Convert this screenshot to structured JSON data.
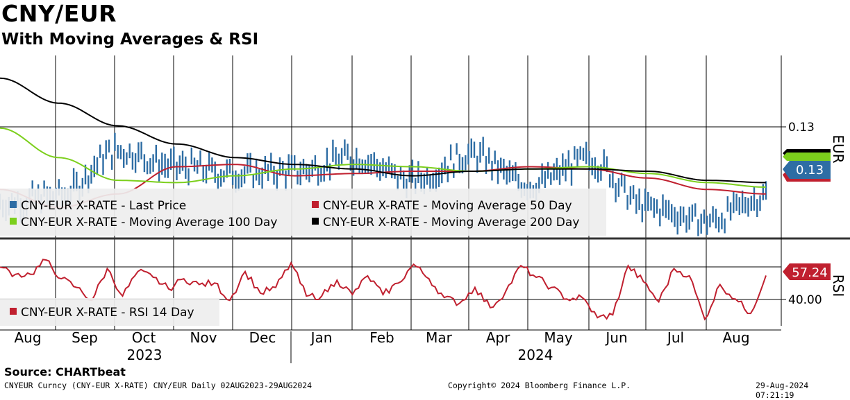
{
  "title": "CNY/EUR",
  "subtitle": "With Moving Averages & RSI",
  "source": "Source: CHARTbeat",
  "footer": {
    "left": "CNYEUR Curncy (CNY-EUR X-RATE) CNY/EUR  Daily 02AUG2023-29AUG2024",
    "center": "Copyright© 2024 Bloomberg Finance L.P.",
    "right": "29-Aug-2024 07:21:19"
  },
  "colors": {
    "price": "#2e6da4",
    "ma50": "#c0202f",
    "ma100": "#7ccf1c",
    "ma200": "#000000",
    "rsi": "#c0202f"
  },
  "chart_data": [
    {
      "type": "line",
      "title": "CNY/EUR",
      "axis_label": "EUR",
      "y_tick_labels": [
        "0.13"
      ],
      "x_tick_labels": [
        "Aug",
        "Sep",
        "Oct",
        "Nov",
        "Dec",
        "Jan",
        "Feb",
        "Mar",
        "Apr",
        "May",
        "Jun",
        "Jul",
        "Aug"
      ],
      "year_labels": [
        "2023",
        "2024"
      ],
      "last_value_label": "0.13",
      "legend": [
        "CNY-EUR X-RATE - Last Price",
        "CNY-EUR X-RATE - Moving Average 50 Day",
        "CNY-EUR X-RATE - Moving Average 100 Day",
        "CNY-EUR X-RATE - Moving Average 200 Day"
      ],
      "x": [
        "2023-08",
        "2023-09",
        "2023-10",
        "2023-11",
        "2023-12",
        "2024-01",
        "2024-02",
        "2024-03",
        "2024-04",
        "2024-05",
        "2024-06",
        "2024-07",
        "2024-08",
        "2024-08-29"
      ],
      "ylim": [
        0.1245,
        0.1325
      ],
      "series": [
        {
          "name": "CNY-EUR X-RATE - Last Price",
          "values": [
            0.126,
            0.1263,
            0.1283,
            0.1276,
            0.1273,
            0.1274,
            0.128,
            0.127,
            0.1281,
            0.1268,
            0.1279,
            0.1258,
            0.1252,
            0.1263
          ]
        },
        {
          "name": "CNY-EUR X-RATE - Moving Average 50 Day",
          "values": [
            0.1266,
            0.1258,
            0.1264,
            0.1276,
            0.1277,
            0.1272,
            0.1273,
            0.1274,
            0.1274,
            0.1276,
            0.1275,
            0.1271,
            0.1266,
            0.1264
          ]
        },
        {
          "name": "CNY-EUR X-RATE - Moving Average 100 Day",
          "values": [
            0.1293,
            0.128,
            0.127,
            0.1269,
            0.1272,
            0.1275,
            0.1277,
            0.1276,
            0.1274,
            0.1275,
            0.1276,
            0.1273,
            0.1269,
            0.1267
          ]
        },
        {
          "name": "CNY-EUR X-RATE - Moving Average 200 Day",
          "values": [
            0.1315,
            0.1304,
            0.1294,
            0.1286,
            0.128,
            0.1277,
            0.1275,
            0.1272,
            0.1274,
            0.1275,
            0.1275,
            0.1274,
            0.127,
            0.1269
          ]
        }
      ]
    },
    {
      "type": "line",
      "title": "RSI",
      "axis_label": "RSI",
      "y_tick_labels": [
        "40.00"
      ],
      "last_value_label": "57.24",
      "legend": [
        "CNY-EUR X-RATE - RSI 14 Day"
      ],
      "ylim": [
        20,
        80
      ],
      "series": [
        {
          "name": "CNY-EUR X-RATE - RSI 14 Day",
          "values": [
            63,
            58,
            58,
            68,
            55,
            49,
            40,
            62,
            43,
            60,
            56,
            48,
            55,
            51,
            52,
            40,
            60,
            45,
            49,
            66,
            43,
            43,
            54,
            44,
            57,
            44,
            52,
            65,
            55,
            42,
            38,
            49,
            35,
            46,
            64,
            56,
            49,
            41,
            42,
            28,
            30,
            64,
            53,
            39,
            62,
            57,
            27,
            51,
            41,
            31,
            57.24
          ]
        }
      ]
    }
  ]
}
